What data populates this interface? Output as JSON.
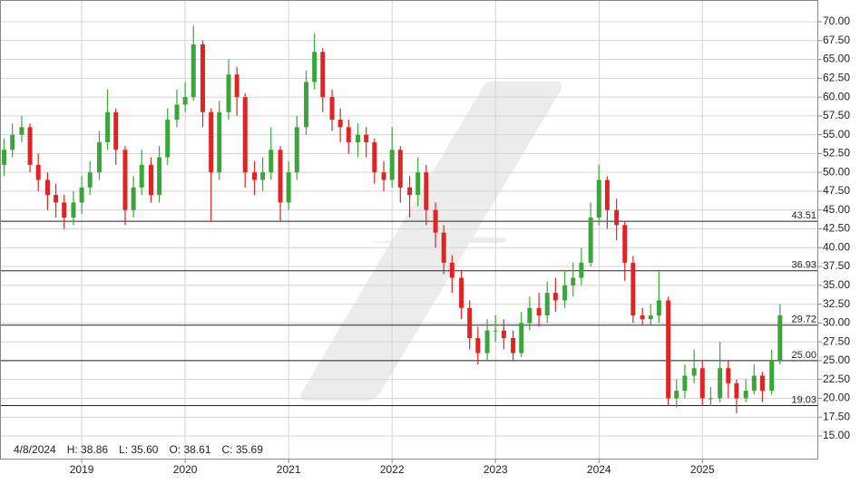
{
  "chart_data": {
    "type": "candlestick",
    "x": [
      2018.25,
      2018.33,
      2018.42,
      2018.5,
      2018.58,
      2018.67,
      2018.75,
      2018.83,
      2018.92,
      2019,
      2019.08,
      2019.17,
      2019.25,
      2019.33,
      2019.42,
      2019.5,
      2019.58,
      2019.67,
      2019.75,
      2019.83,
      2019.92,
      2020,
      2020.08,
      2020.17,
      2020.25,
      2020.33,
      2020.42,
      2020.5,
      2020.58,
      2020.67,
      2020.75,
      2020.83,
      2020.92,
      2021,
      2021.08,
      2021.17,
      2021.25,
      2021.33,
      2021.42,
      2021.5,
      2021.58,
      2021.67,
      2021.75,
      2021.83,
      2021.92,
      2022,
      2022.08,
      2022.17,
      2022.25,
      2022.33,
      2022.42,
      2022.5,
      2022.58,
      2022.67,
      2022.75,
      2022.83,
      2022.92,
      2023,
      2023.08,
      2023.17,
      2023.25,
      2023.33,
      2023.42,
      2023.5,
      2023.58,
      2023.67,
      2023.75,
      2023.83,
      2023.92,
      2024,
      2024.08,
      2024.17,
      2024.25,
      2024.33,
      2024.42,
      2024.5,
      2024.58,
      2024.67,
      2024.75,
      2024.83,
      2024.92,
      2025,
      2025.08,
      2025.17,
      2025.25,
      2025.33,
      2025.42,
      2025.5,
      2025.58,
      2025.67,
      2025.75
    ],
    "open": [
      51,
      53,
      55,
      56,
      51,
      49,
      47,
      46,
      44,
      46,
      48,
      50,
      54,
      58,
      53,
      45,
      48,
      51,
      47,
      52,
      57,
      59,
      60,
      67,
      58,
      50,
      58,
      63,
      60,
      50,
      49,
      50,
      53,
      46,
      50,
      56,
      62,
      66,
      60,
      57,
      56,
      54,
      55,
      54,
      50,
      49,
      53,
      48,
      47,
      50,
      45,
      42,
      38,
      36,
      32,
      28,
      26,
      29,
      29,
      28,
      26,
      30,
      32,
      31,
      34,
      33,
      35,
      36,
      38,
      44,
      49,
      45,
      43,
      38,
      31,
      30.5,
      31,
      33,
      20,
      21,
      23,
      24,
      20,
      20,
      24,
      22,
      20,
      21,
      23,
      21,
      25
    ],
    "high": [
      54.5,
      56.5,
      57.5,
      56.5,
      52.5,
      50,
      48.5,
      47,
      47.5,
      49.5,
      51.5,
      55.5,
      61,
      58.5,
      53.5,
      49.5,
      53,
      52,
      53.5,
      58.5,
      61,
      62,
      69.5,
      67.5,
      58.5,
      59.5,
      65,
      64,
      60.5,
      51.5,
      52,
      56,
      53.5,
      51.5,
      57.5,
      63.5,
      68.5,
      66.5,
      61,
      58.5,
      57,
      56.5,
      56,
      54.5,
      51.5,
      56,
      53.5,
      49.5,
      52,
      51,
      46,
      43,
      39,
      37,
      33,
      29.5,
      30.5,
      31,
      30.5,
      29,
      31.5,
      33.5,
      34,
      35.5,
      36,
      37,
      38,
      40,
      46,
      51,
      49.5,
      46.5,
      43.5,
      38.9,
      32,
      32.5,
      37,
      33.5,
      22.5,
      24.5,
      26.5,
      25,
      21.5,
      27.5,
      25,
      22.5,
      22.5,
      24.5,
      23.5,
      26.5,
      32.5
    ],
    "low": [
      49.5,
      52,
      54,
      50,
      47.5,
      45,
      44,
      42.5,
      43,
      44.5,
      47,
      49,
      53,
      51,
      43,
      44,
      47,
      46,
      46,
      51,
      56,
      58,
      59.5,
      56,
      43.5,
      49,
      57,
      57.5,
      48,
      47,
      47.5,
      49,
      43.5,
      45,
      49,
      55,
      61,
      58,
      55.5,
      54,
      52.5,
      52,
      52,
      48.5,
      47.5,
      48,
      46,
      44,
      45.5,
      43,
      40,
      36.5,
      34,
      30.5,
      26.5,
      24.5,
      25,
      27.5,
      26.5,
      25,
      25.5,
      29,
      29.5,
      30,
      31.5,
      32,
      33.5,
      35,
      37.5,
      43,
      42.5,
      41,
      35.6,
      30,
      29.8,
      29.8,
      30,
      19,
      18.8,
      20,
      22,
      19,
      19,
      19.5,
      20,
      18,
      19.5,
      20.5,
      19.5,
      20.5,
      24.5
    ],
    "close": [
      53,
      55,
      56,
      51,
      49,
      47,
      46,
      44,
      46,
      48,
      50,
      54,
      58,
      53,
      45,
      48,
      51,
      47,
      52,
      57,
      59,
      60,
      67,
      58,
      50,
      58,
      63,
      60,
      50,
      49,
      50,
      53,
      46,
      50,
      56,
      62,
      66,
      60,
      57,
      56,
      54,
      55,
      54,
      50,
      49,
      53,
      48,
      47,
      50,
      45,
      42,
      38,
      36,
      32,
      28,
      26,
      29,
      29,
      28,
      26,
      30,
      32,
      31,
      34,
      33,
      35,
      36,
      38,
      44,
      49,
      45,
      43,
      38,
      31,
      30.5,
      31,
      33,
      20,
      21,
      23,
      24,
      20,
      20,
      24,
      22,
      20,
      21,
      23,
      21,
      25,
      31
    ],
    "up_color": "#3aa63a",
    "down_color": "#e02424",
    "xlim": [
      2018.21,
      2026.12
    ],
    "xticks": [
      2019,
      2020,
      2021,
      2022,
      2023,
      2024,
      2025
    ],
    "ylim": [
      11.87,
      72.89
    ],
    "yticks": [
      {
        "value": 15,
        "label": "15.00"
      },
      {
        "value": 17.5,
        "label": "17.50"
      },
      {
        "value": 20,
        "label": "20.00"
      },
      {
        "value": 22.5,
        "label": "22.50"
      },
      {
        "value": 25,
        "label": "25.00"
      },
      {
        "value": 27.5,
        "label": "27.50"
      },
      {
        "value": 30,
        "label": "30.00"
      },
      {
        "value": 32.5,
        "label": "32.50"
      },
      {
        "value": 35,
        "label": "35.00"
      },
      {
        "value": 37.5,
        "label": "37.50"
      },
      {
        "value": 40,
        "label": "40.00"
      },
      {
        "value": 42.5,
        "label": "42.50"
      },
      {
        "value": 45,
        "label": "45.00"
      },
      {
        "value": 47.5,
        "label": "47.50"
      },
      {
        "value": 50,
        "label": "50.00"
      },
      {
        "value": 52.5,
        "label": "52.50"
      },
      {
        "value": 55,
        "label": "55.00"
      },
      {
        "value": 57.5,
        "label": "57.50"
      },
      {
        "value": 60,
        "label": "60.00"
      },
      {
        "value": 62.5,
        "label": "62.50"
      },
      {
        "value": 65,
        "label": "65.00"
      },
      {
        "value": 67.5,
        "label": "67.50"
      },
      {
        "value": 70,
        "label": "70.00"
      }
    ],
    "levels": [
      43.51,
      36.93,
      29.72,
      {
        "value": 25,
        "label": "25.00"
      },
      19.03
    ],
    "grid": true,
    "info": [
      "4/8/2024",
      "H: 38.86",
      "L: 35.60",
      "O: 38.61",
      "C: 35.69"
    ]
  }
}
